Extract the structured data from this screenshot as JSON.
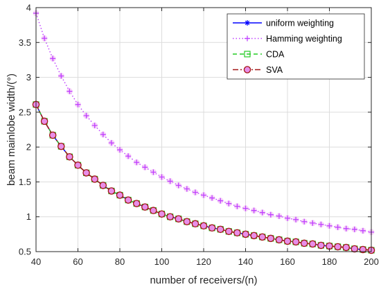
{
  "chart_data": {
    "type": "line",
    "title": "",
    "xlabel": "number of receivers/(n)",
    "ylabel": "beam mainlobe width/(°)",
    "xlim": [
      40,
      200
    ],
    "ylim": [
      0.5,
      4
    ],
    "xticks": [
      40,
      60,
      80,
      100,
      120,
      140,
      160,
      180,
      200
    ],
    "yticks": [
      0.5,
      1,
      1.5,
      2,
      2.5,
      3,
      3.5,
      4
    ],
    "xtick_labels": [
      "40",
      "60",
      "80",
      "100",
      "120",
      "140",
      "160",
      "180",
      "200"
    ],
    "ytick_labels": [
      "0.5",
      "1",
      "1.5",
      "2",
      "2.5",
      "3",
      "3.5",
      "4"
    ],
    "grid": true,
    "legend_position": "top-right",
    "x": [
      40,
      44,
      48,
      52,
      56,
      60,
      64,
      68,
      72,
      76,
      80,
      84,
      88,
      92,
      96,
      100,
      104,
      108,
      112,
      116,
      120,
      124,
      128,
      132,
      136,
      140,
      144,
      148,
      152,
      156,
      160,
      164,
      168,
      172,
      176,
      180,
      184,
      188,
      192,
      196,
      200
    ],
    "series": [
      {
        "name": "uniform weighting",
        "color": "#0000ff",
        "line_style": "solid",
        "marker": "asterisk",
        "values": [
          2.61,
          2.37,
          2.17,
          2.01,
          1.86,
          1.74,
          1.63,
          1.54,
          1.45,
          1.37,
          1.31,
          1.24,
          1.19,
          1.14,
          1.09,
          1.04,
          1.0,
          0.97,
          0.93,
          0.9,
          0.87,
          0.84,
          0.82,
          0.79,
          0.77,
          0.75,
          0.73,
          0.71,
          0.69,
          0.67,
          0.65,
          0.64,
          0.62,
          0.61,
          0.59,
          0.58,
          0.57,
          0.56,
          0.54,
          0.53,
          0.52
        ]
      },
      {
        "name": "Hamming weighting",
        "color": "#bf40ff",
        "line_style": "dotted",
        "marker": "plus",
        "values": [
          3.92,
          3.56,
          3.27,
          3.02,
          2.8,
          2.61,
          2.45,
          2.31,
          2.18,
          2.06,
          1.96,
          1.87,
          1.78,
          1.71,
          1.64,
          1.57,
          1.51,
          1.45,
          1.4,
          1.35,
          1.31,
          1.27,
          1.23,
          1.19,
          1.15,
          1.12,
          1.09,
          1.06,
          1.03,
          1.01,
          0.98,
          0.96,
          0.93,
          0.91,
          0.89,
          0.87,
          0.85,
          0.83,
          0.82,
          0.8,
          0.78
        ]
      },
      {
        "name": "CDA",
        "color": "#22cc22",
        "line_style": "dashed",
        "marker": "square",
        "values": [
          2.61,
          2.37,
          2.17,
          2.01,
          1.86,
          1.74,
          1.63,
          1.54,
          1.45,
          1.37,
          1.31,
          1.24,
          1.19,
          1.14,
          1.09,
          1.04,
          1.0,
          0.97,
          0.93,
          0.9,
          0.87,
          0.84,
          0.82,
          0.79,
          0.77,
          0.75,
          0.73,
          0.71,
          0.69,
          0.67,
          0.65,
          0.64,
          0.62,
          0.61,
          0.59,
          0.58,
          0.57,
          0.56,
          0.54,
          0.53,
          0.52
        ]
      },
      {
        "name": "SVA",
        "color": "#a31515",
        "line_style": "dashdot",
        "marker": "circle",
        "values": [
          2.61,
          2.37,
          2.17,
          2.01,
          1.86,
          1.74,
          1.63,
          1.54,
          1.45,
          1.37,
          1.31,
          1.24,
          1.19,
          1.14,
          1.09,
          1.04,
          1.0,
          0.97,
          0.93,
          0.9,
          0.87,
          0.84,
          0.82,
          0.79,
          0.77,
          0.75,
          0.73,
          0.71,
          0.69,
          0.67,
          0.65,
          0.64,
          0.62,
          0.61,
          0.59,
          0.58,
          0.57,
          0.56,
          0.54,
          0.53,
          0.52
        ]
      }
    ]
  }
}
